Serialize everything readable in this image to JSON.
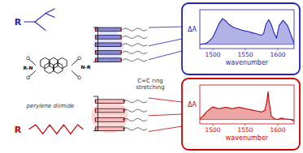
{
  "chart_data": [
    {
      "type": "area",
      "color": "#2222bb",
      "x": [
        1480,
        1490,
        1495,
        1500,
        1505,
        1510,
        1515,
        1520,
        1525,
        1530,
        1535,
        1540,
        1545,
        1550,
        1555,
        1560,
        1565,
        1570,
        1575,
        1578,
        1582,
        1586,
        1590,
        1594,
        1598,
        1602,
        1608,
        1615,
        1625
      ],
      "values": [
        0.02,
        0.05,
        0.12,
        0.22,
        0.42,
        0.62,
        0.75,
        0.68,
        0.58,
        0.52,
        0.48,
        0.45,
        0.42,
        0.4,
        0.38,
        0.35,
        0.33,
        0.3,
        0.28,
        0.32,
        0.6,
        0.72,
        0.58,
        0.35,
        0.2,
        0.55,
        0.7,
        0.55,
        0.05
      ],
      "baseline": 0.02,
      "xlim": [
        1480,
        1625
      ],
      "xticks": [
        1500,
        1550,
        1600
      ],
      "ylim": [
        -0.1,
        1.0
      ],
      "tick_labels": "x",
      "x_label": "wavenumber",
      "y_label": "ΔA",
      "annotations": [
        {
          "text": "R",
          "color": "#2222bb"
        },
        {
          "text": "perylene diimide",
          "color": "#333333"
        },
        {
          "text": "O",
          "color": "#000000"
        },
        {
          "text": "O",
          "color": "#000000"
        },
        {
          "text": "R-N",
          "color": "#000000"
        },
        {
          "text": "O",
          "color": "#000000"
        },
        {
          "text": "O",
          "color": "#000000"
        },
        {
          "text": "N-R",
          "color": "#000000"
        }
      ]
    },
    {
      "type": "area",
      "color": "#cc0000",
      "x": [
        1480,
        1485,
        1490,
        1495,
        1500,
        1505,
        1510,
        1515,
        1520,
        1525,
        1530,
        1535,
        1540,
        1545,
        1550,
        1555,
        1560,
        1565,
        1570,
        1575,
        1580,
        1583,
        1585,
        1587,
        1590,
        1595,
        1600,
        1605,
        1610,
        1620,
        1625
      ],
      "values": [
        0.1,
        0.18,
        0.3,
        0.38,
        0.45,
        0.42,
        0.4,
        0.42,
        0.44,
        0.42,
        0.4,
        0.42,
        0.44,
        0.42,
        0.4,
        0.38,
        0.36,
        0.34,
        0.32,
        0.3,
        0.35,
        0.6,
        0.9,
        0.55,
        0.18,
        0.1,
        0.08,
        0.12,
        0.1,
        0.08,
        0.02
      ],
      "baseline": 0.08,
      "xlim": [
        1480,
        1625
      ],
      "xticks": [
        1500,
        1550,
        1600
      ],
      "ylim": [
        -0.05,
        1.1
      ],
      "tick_labels": "x",
      "x_label": "wavenumber",
      "y_label": "ΔA",
      "annotations": [
        {
          "text": "R",
          "color": "#cc0000"
        },
        {
          "text": "C=C ring\nstretching",
          "color": "#333333"
        }
      ]
    }
  ]
}
